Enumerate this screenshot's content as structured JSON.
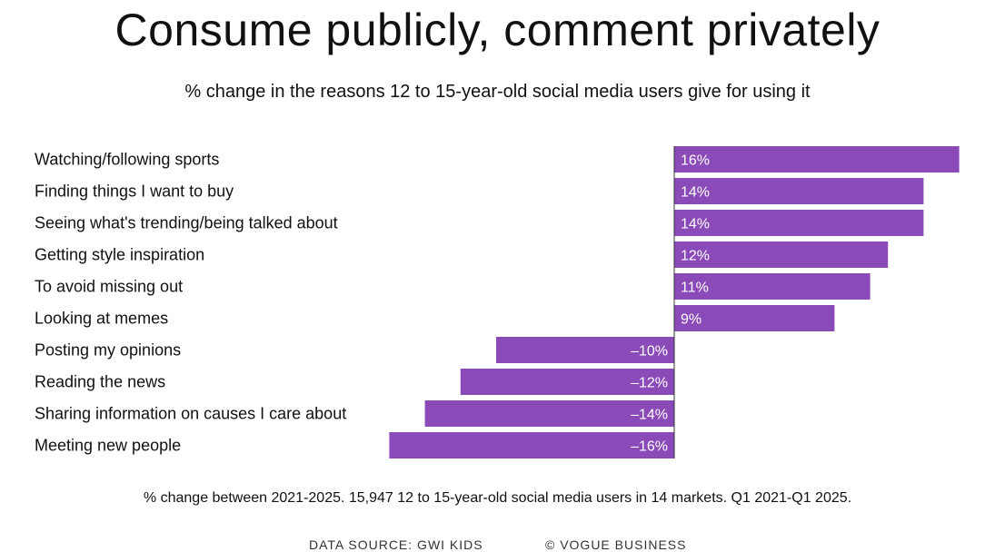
{
  "title": "Consume publicly, comment privately",
  "subtitle": "% change in the reasons 12 to 15-year-old social media users give for using it",
  "footnote": "% change between 2021-2025. 15,947 12 to 15-year-old social media users in 14 markets. Q1 2021-Q1 2025.",
  "source": {
    "left": "DATA SOURCE: GWI KIDS",
    "right": "© VOGUE BUSINESS"
  },
  "colors": {
    "bar": "#8a4ab8",
    "axis": "#333333",
    "bar_text": "#ffffff"
  },
  "chart_data": {
    "type": "bar",
    "orientation": "horizontal",
    "title": "Consume publicly, comment privately",
    "subtitle": "% change in the reasons 12 to 15-year-old social media users give for using it",
    "xlabel": "",
    "ylabel": "",
    "xlim": [
      -16,
      16
    ],
    "grid": false,
    "categories": [
      "Watching/following sports",
      "Finding things I want to buy",
      "Seeing what's trending/being talked about",
      "Getting style inspiration",
      "To avoid missing out",
      "Looking at memes",
      "Posting my opinions",
      "Reading the news",
      "Sharing information on causes I care about",
      "Meeting new people"
    ],
    "values": [
      16,
      14,
      14,
      12,
      11,
      9,
      -10,
      -12,
      -14,
      -16
    ],
    "labels": [
      "16%",
      "14%",
      "14%",
      "12%",
      "11%",
      "9%",
      "–10%",
      "–12%",
      "–14%",
      "–16%"
    ]
  }
}
